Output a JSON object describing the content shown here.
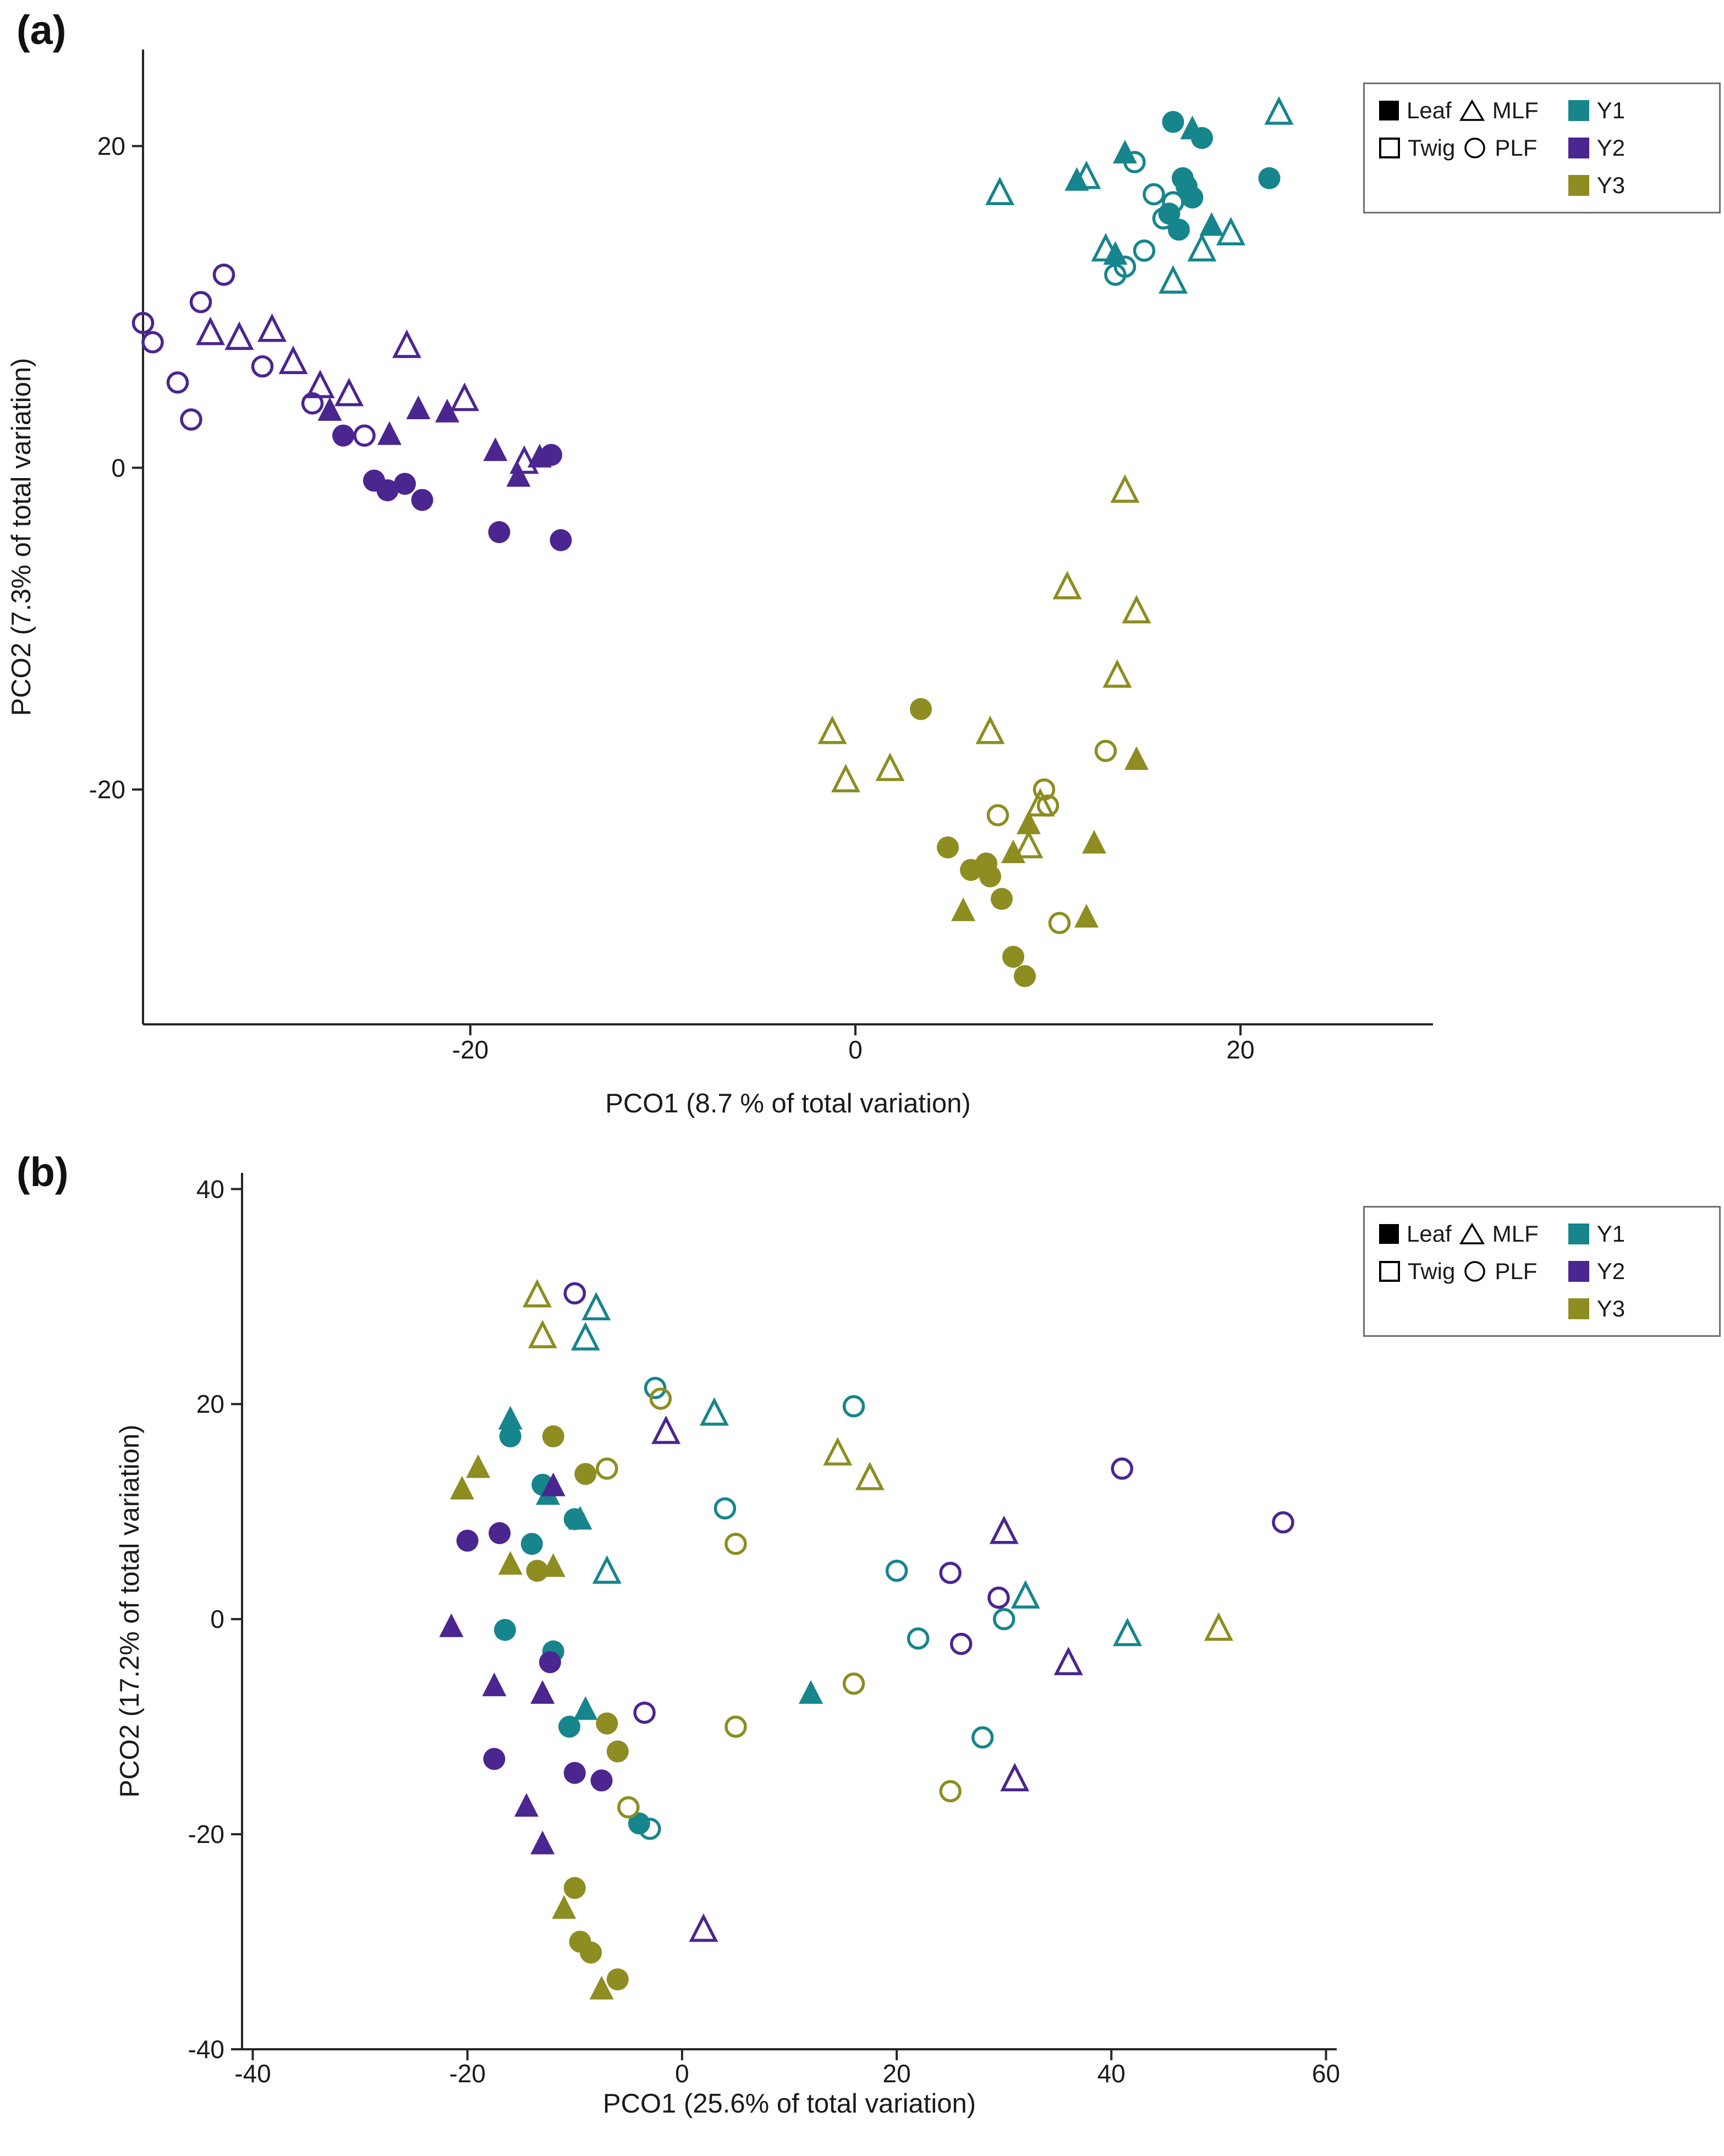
{
  "figure": {
    "panels": [
      {
        "label": "(a)"
      },
      {
        "label": "(b)"
      }
    ]
  },
  "legend": {
    "shape_entries": [
      {
        "label": "Leaf",
        "marker": "filled-square"
      },
      {
        "label": "MLF",
        "marker": "open-triangle"
      },
      {
        "label": "Twig",
        "marker": "open-square"
      },
      {
        "label": "PLF",
        "marker": "open-circle"
      }
    ],
    "color_entries": [
      {
        "label": "Y1",
        "color": "#16858c"
      },
      {
        "label": "Y2",
        "color": "#4b2590"
      },
      {
        "label": "Y3",
        "color": "#8d8d21"
      }
    ]
  },
  "chart_data": [
    {
      "id": "panel-a",
      "type": "scatter",
      "xlabel": "PCO1 (8.7 % of total variation)",
      "ylabel": "PCO2 (7.3% of total variation)",
      "xlim": [
        -37,
        30
      ],
      "ylim": [
        -34.6,
        26
      ],
      "xticks": [
        -20,
        0,
        20
      ],
      "yticks": [
        -20,
        0,
        20
      ],
      "grid": false,
      "legend_position": "top-right",
      "series": [
        {
          "name": "Y1 Twig MLF",
          "year": "Y1",
          "tissue": "Twig",
          "fraction": "MLF",
          "shape": "triangle",
          "fill": "open",
          "color": "#16858c",
          "points": [
            [
              7.5,
              17
            ],
            [
              12,
              18
            ],
            [
              13,
              13.5
            ],
            [
              16.5,
              11.5
            ],
            [
              19.5,
              14.5
            ],
            [
              22,
              22
            ],
            [
              18,
              13.5
            ]
          ]
        },
        {
          "name": "Y1 Leaf MLF",
          "year": "Y1",
          "tissue": "Leaf",
          "fraction": "MLF",
          "shape": "triangle",
          "fill": "filled",
          "color": "#16858c",
          "points": [
            [
              11.5,
              17.8
            ],
            [
              14,
              19.5
            ],
            [
              13.5,
              13.2
            ],
            [
              17.5,
              21
            ],
            [
              18.5,
              15
            ]
          ]
        },
        {
          "name": "Y1 Twig PLF",
          "year": "Y1",
          "tissue": "Twig",
          "fraction": "PLF",
          "shape": "circle",
          "fill": "open",
          "color": "#16858c",
          "points": [
            [
              14.5,
              19
            ],
            [
              15.5,
              17
            ],
            [
              16,
              15.5
            ],
            [
              13.5,
              12
            ],
            [
              15,
              13.5
            ],
            [
              16.5,
              16.5
            ],
            [
              14,
              12.5
            ]
          ]
        },
        {
          "name": "Y1 Leaf PLF",
          "year": "Y1",
          "tissue": "Leaf",
          "fraction": "PLF",
          "shape": "circle",
          "fill": "filled",
          "color": "#16858c",
          "points": [
            [
              16.5,
              21.5
            ],
            [
              18,
              20.5
            ],
            [
              17,
              18
            ],
            [
              17.5,
              16.8
            ],
            [
              16.3,
              15.8
            ],
            [
              21.5,
              18
            ],
            [
              16.8,
              14.8
            ],
            [
              17.2,
              17.5
            ]
          ]
        },
        {
          "name": "Y2 Twig PLF",
          "year": "Y2",
          "tissue": "Twig",
          "fraction": "PLF",
          "shape": "circle",
          "fill": "open",
          "color": "#4b2590",
          "points": [
            [
              -37,
              9
            ],
            [
              -36.5,
              7.8
            ],
            [
              -34,
              10.3
            ],
            [
              -32.8,
              12
            ],
            [
              -35.2,
              5.3
            ],
            [
              -34.5,
              3
            ],
            [
              -30.8,
              6.3
            ],
            [
              -28.2,
              4
            ],
            [
              -25.5,
              2
            ]
          ]
        },
        {
          "name": "Y2 Twig MLF",
          "year": "Y2",
          "tissue": "Twig",
          "fraction": "MLF",
          "shape": "triangle",
          "fill": "open",
          "color": "#4b2590",
          "points": [
            [
              -33.5,
              8.3
            ],
            [
              -32,
              8
            ],
            [
              -30.3,
              8.5
            ],
            [
              -29.2,
              6.5
            ],
            [
              -27.8,
              5
            ],
            [
              -26.3,
              4.5
            ],
            [
              -23.3,
              7.5
            ],
            [
              -20.3,
              4.2
            ],
            [
              -17.2,
              0.3
            ]
          ]
        },
        {
          "name": "Y2 Leaf MLF",
          "year": "Y2",
          "tissue": "Leaf",
          "fraction": "MLF",
          "shape": "triangle",
          "fill": "filled",
          "color": "#4b2590",
          "points": [
            [
              -27.3,
              3.5
            ],
            [
              -22.7,
              3.6
            ],
            [
              -21.2,
              3.4
            ],
            [
              -24.2,
              2
            ],
            [
              -18.7,
              1
            ],
            [
              -16.4,
              0.6
            ],
            [
              -17.5,
              -0.6
            ]
          ]
        },
        {
          "name": "Y2 Leaf PLF",
          "year": "Y2",
          "tissue": "Leaf",
          "fraction": "PLF",
          "shape": "circle",
          "fill": "filled",
          "color": "#4b2590",
          "points": [
            [
              -26.6,
              2
            ],
            [
              -25,
              -0.8
            ],
            [
              -24.3,
              -1.4
            ],
            [
              -23.4,
              -1
            ],
            [
              -22.5,
              -2
            ],
            [
              -18.5,
              -4
            ],
            [
              -15.3,
              -4.5
            ],
            [
              -15.8,
              0.8
            ]
          ]
        },
        {
          "name": "Y3 Twig MLF",
          "year": "Y3",
          "tissue": "Twig",
          "fraction": "MLF",
          "shape": "triangle",
          "fill": "open",
          "color": "#8d8d21",
          "points": [
            [
              14,
              -1.5
            ],
            [
              11,
              -7.5
            ],
            [
              14.6,
              -9
            ],
            [
              13.6,
              -13
            ],
            [
              -1.2,
              -16.5
            ],
            [
              -0.5,
              -19.5
            ],
            [
              1.8,
              -18.8
            ],
            [
              7,
              -16.5
            ],
            [
              9.6,
              -21
            ],
            [
              9,
              -23.6
            ]
          ]
        },
        {
          "name": "Y3 Twig PLF",
          "year": "Y3",
          "tissue": "Twig",
          "fraction": "PLF",
          "shape": "circle",
          "fill": "open",
          "color": "#8d8d21",
          "points": [
            [
              13,
              -17.6
            ],
            [
              9.8,
              -20
            ],
            [
              7.4,
              -21.6
            ],
            [
              10,
              -21
            ],
            [
              10.6,
              -28.3
            ]
          ]
        },
        {
          "name": "Y3 Leaf MLF",
          "year": "Y3",
          "tissue": "Leaf",
          "fraction": "MLF",
          "shape": "triangle",
          "fill": "filled",
          "color": "#8d8d21",
          "points": [
            [
              14.6,
              -18.2
            ],
            [
              9,
              -22.2
            ],
            [
              12.4,
              -23.4
            ],
            [
              5.6,
              -27.6
            ],
            [
              12,
              -28
            ],
            [
              8.2,
              -24
            ]
          ]
        },
        {
          "name": "Y3 Leaf PLF",
          "year": "Y3",
          "tissue": "Leaf",
          "fraction": "PLF",
          "shape": "circle",
          "fill": "filled",
          "color": "#8d8d21",
          "points": [
            [
              3.4,
              -15
            ],
            [
              4.8,
              -23.6
            ],
            [
              6,
              -25
            ],
            [
              7,
              -25.4
            ],
            [
              7.6,
              -26.8
            ],
            [
              8.2,
              -30.4
            ],
            [
              8.8,
              -31.6
            ],
            [
              6.8,
              -24.6
            ]
          ]
        }
      ]
    },
    {
      "id": "panel-b",
      "type": "scatter",
      "xlabel": "PCO1 (25.6% of total variation)",
      "ylabel": "PCO2 (17.2% of total variation)",
      "xlim": [
        -41,
        61
      ],
      "ylim": [
        -40,
        41.5
      ],
      "xticks": [
        -40,
        -20,
        0,
        20,
        40,
        60
      ],
      "yticks": [
        -40,
        -20,
        0,
        20,
        40
      ],
      "grid": false,
      "legend_position": "top-right",
      "series": [
        {
          "name": "Y1 Twig MLF",
          "year": "Y1",
          "tissue": "Twig",
          "fraction": "MLF",
          "shape": "triangle",
          "fill": "open",
          "color": "#16858c",
          "points": [
            [
              -8,
              28.8
            ],
            [
              -9,
              26
            ],
            [
              3,
              19
            ],
            [
              -7,
              4.3
            ],
            [
              32,
              2
            ],
            [
              41.5,
              -1.5
            ]
          ]
        },
        {
          "name": "Y1 Leaf MLF",
          "year": "Y1",
          "tissue": "Leaf",
          "fraction": "MLF",
          "shape": "triangle",
          "fill": "filled",
          "color": "#16858c",
          "points": [
            [
              -16,
              18.5
            ],
            [
              -12.5,
              11.5
            ],
            [
              -9.5,
              9.2
            ],
            [
              12,
              -7
            ],
            [
              -9,
              -8.5
            ]
          ]
        },
        {
          "name": "Y1 Twig PLF",
          "year": "Y1",
          "tissue": "Twig",
          "fraction": "PLF",
          "shape": "circle",
          "fill": "open",
          "color": "#16858c",
          "points": [
            [
              -2.5,
              21.5
            ],
            [
              16,
              19.8
            ],
            [
              4,
              10.3
            ],
            [
              20,
              4.5
            ],
            [
              30,
              0
            ],
            [
              22,
              -1.8
            ],
            [
              28,
              -11
            ],
            [
              -3,
              -19.5
            ]
          ]
        },
        {
          "name": "Y1 Leaf PLF",
          "year": "Y1",
          "tissue": "Leaf",
          "fraction": "PLF",
          "shape": "circle",
          "fill": "filled",
          "color": "#16858c",
          "points": [
            [
              -16,
              17
            ],
            [
              -13,
              12.5
            ],
            [
              -10,
              9.3
            ],
            [
              -14,
              7
            ],
            [
              -12,
              -3
            ],
            [
              -10.5,
              -10
            ],
            [
              -4,
              -19
            ],
            [
              -16.5,
              -1
            ]
          ]
        },
        {
          "name": "Y2 Twig PLF",
          "year": "Y2",
          "tissue": "Twig",
          "fraction": "PLF",
          "shape": "circle",
          "fill": "open",
          "color": "#4b2590",
          "points": [
            [
              -10,
              30.3
            ],
            [
              41,
              14
            ],
            [
              56,
              9
            ],
            [
              25,
              4.3
            ],
            [
              29.5,
              2
            ],
            [
              26,
              -2.3
            ],
            [
              -3.5,
              -8.7
            ]
          ]
        },
        {
          "name": "Y2 Twig MLF",
          "year": "Y2",
          "tissue": "Twig",
          "fraction": "MLF",
          "shape": "triangle",
          "fill": "open",
          "color": "#4b2590",
          "points": [
            [
              -1.5,
              17.3
            ],
            [
              30,
              8
            ],
            [
              36,
              -4.2
            ],
            [
              31,
              -15
            ],
            [
              2,
              -29
            ]
          ]
        },
        {
          "name": "Y2 Leaf MLF",
          "year": "Y2",
          "tissue": "Leaf",
          "fraction": "MLF",
          "shape": "triangle",
          "fill": "filled",
          "color": "#4b2590",
          "points": [
            [
              -12,
              12.3
            ],
            [
              -21.5,
              -0.8
            ],
            [
              -17.5,
              -6.3
            ],
            [
              -13,
              -7
            ],
            [
              -14.5,
              -17.5
            ],
            [
              -13,
              -21
            ]
          ]
        },
        {
          "name": "Y2 Leaf PLF",
          "year": "Y2",
          "tissue": "Leaf",
          "fraction": "PLF",
          "shape": "circle",
          "fill": "filled",
          "color": "#4b2590",
          "points": [
            [
              -20,
              7.3
            ],
            [
              -17,
              8
            ],
            [
              -12.3,
              -4
            ],
            [
              -17.5,
              -13
            ],
            [
              -10,
              -14.3
            ],
            [
              -7.5,
              -15
            ]
          ]
        },
        {
          "name": "Y3 Twig MLF",
          "year": "Y3",
          "tissue": "Twig",
          "fraction": "MLF",
          "shape": "triangle",
          "fill": "open",
          "color": "#8d8d21",
          "points": [
            [
              -13.5,
              30
            ],
            [
              -13,
              26.2
            ],
            [
              14.5,
              15.3
            ],
            [
              17.5,
              13
            ],
            [
              50,
              -1
            ]
          ]
        },
        {
          "name": "Y3 Twig PLF",
          "year": "Y3",
          "tissue": "Twig",
          "fraction": "PLF",
          "shape": "circle",
          "fill": "open",
          "color": "#8d8d21",
          "points": [
            [
              -2,
              20.5
            ],
            [
              -7,
              14
            ],
            [
              5,
              7
            ],
            [
              16,
              -6
            ],
            [
              25,
              -16
            ],
            [
              -5,
              -17.5
            ],
            [
              5,
              -10
            ]
          ]
        },
        {
          "name": "Y3 Leaf MLF",
          "year": "Y3",
          "tissue": "Leaf",
          "fraction": "MLF",
          "shape": "triangle",
          "fill": "filled",
          "color": "#8d8d21",
          "points": [
            [
              -19,
              14
            ],
            [
              -20.5,
              12
            ],
            [
              -16,
              5
            ],
            [
              -12,
              4.8
            ],
            [
              -11,
              -27
            ],
            [
              -7.5,
              -34.5
            ]
          ]
        },
        {
          "name": "Y3 Leaf PLF",
          "year": "Y3",
          "tissue": "Leaf",
          "fraction": "PLF",
          "shape": "circle",
          "fill": "filled",
          "color": "#8d8d21",
          "points": [
            [
              -12,
              17
            ],
            [
              -9,
              13.5
            ],
            [
              -13.5,
              4.5
            ],
            [
              -6,
              -12.3
            ],
            [
              -10,
              -25
            ],
            [
              -9.5,
              -30
            ],
            [
              -8.5,
              -31
            ],
            [
              -6,
              -33.5
            ],
            [
              -7,
              -9.7
            ]
          ]
        }
      ]
    }
  ]
}
